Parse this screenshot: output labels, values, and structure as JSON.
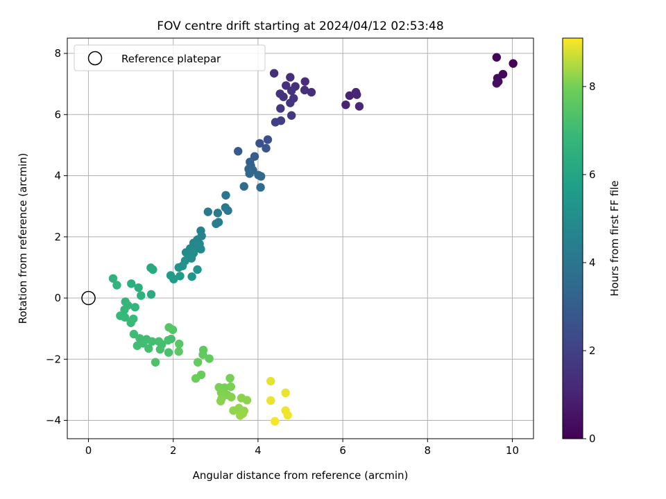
{
  "chart_data": {
    "type": "scatter",
    "title": "FOV centre drift starting at 2024/04/12 02:53:48",
    "xlabel": "Angular distance from reference (arcmin)",
    "ylabel": "Rotation from reference (arcmin)",
    "xlim": [
      -0.5,
      10.5
    ],
    "ylim": [
      -4.6,
      8.5
    ],
    "xticks": [
      0,
      2,
      4,
      6,
      8,
      10
    ],
    "yticks": [
      -4,
      -2,
      0,
      2,
      4,
      6,
      8
    ],
    "grid": true,
    "legend": {
      "placement": "top-left",
      "entries": [
        "Reference platepar"
      ]
    },
    "reference": {
      "label": "Reference platepar",
      "x": 0,
      "y": 0
    },
    "colorbar": {
      "label": "Hours from first FF file",
      "colormap": "viridis",
      "range": [
        0,
        9.1
      ],
      "ticks": [
        0,
        2,
        4,
        6,
        8
      ]
    },
    "points": [
      {
        "x": 9.63,
        "y": 7.87,
        "t": 0.1
      },
      {
        "x": 10.02,
        "y": 7.67,
        "t": 0.05
      },
      {
        "x": 9.78,
        "y": 7.32,
        "t": 0.2
      },
      {
        "x": 9.65,
        "y": 7.19,
        "t": 0.3
      },
      {
        "x": 9.67,
        "y": 7.08,
        "t": 0.35
      },
      {
        "x": 9.63,
        "y": 7.02,
        "t": 0.4
      },
      {
        "x": 6.07,
        "y": 6.32,
        "t": 1.0
      },
      {
        "x": 6.16,
        "y": 6.62,
        "t": 1.0
      },
      {
        "x": 6.31,
        "y": 6.73,
        "t": 1.05
      },
      {
        "x": 6.33,
        "y": 6.65,
        "t": 1.05
      },
      {
        "x": 6.39,
        "y": 6.27,
        "t": 1.1
      },
      {
        "x": 4.38,
        "y": 7.35,
        "t": 1.4
      },
      {
        "x": 4.76,
        "y": 7.22,
        "t": 1.35
      },
      {
        "x": 5.11,
        "y": 7.08,
        "t": 1.3
      },
      {
        "x": 4.66,
        "y": 6.95,
        "t": 1.45
      },
      {
        "x": 4.88,
        "y": 6.92,
        "t": 1.4
      },
      {
        "x": 4.79,
        "y": 6.78,
        "t": 1.5
      },
      {
        "x": 5.1,
        "y": 6.8,
        "t": 1.4
      },
      {
        "x": 5.26,
        "y": 6.73,
        "t": 1.35
      },
      {
        "x": 4.52,
        "y": 6.68,
        "t": 1.55
      },
      {
        "x": 4.6,
        "y": 6.58,
        "t": 1.55
      },
      {
        "x": 4.84,
        "y": 6.53,
        "t": 1.5
      },
      {
        "x": 4.76,
        "y": 6.38,
        "t": 1.55
      },
      {
        "x": 4.53,
        "y": 6.2,
        "t": 1.65
      },
      {
        "x": 4.79,
        "y": 5.97,
        "t": 1.65
      },
      {
        "x": 4.54,
        "y": 5.8,
        "t": 1.85
      },
      {
        "x": 4.41,
        "y": 5.75,
        "t": 1.95
      },
      {
        "x": 4.23,
        "y": 5.18,
        "t": 2.5
      },
      {
        "x": 4.04,
        "y": 5.06,
        "t": 2.6
      },
      {
        "x": 4.19,
        "y": 4.9,
        "t": 2.7
      },
      {
        "x": 3.53,
        "y": 4.8,
        "t": 2.9
      },
      {
        "x": 3.92,
        "y": 4.63,
        "t": 3.0
      },
      {
        "x": 3.81,
        "y": 4.45,
        "t": 3.1
      },
      {
        "x": 3.83,
        "y": 4.33,
        "t": 3.2
      },
      {
        "x": 3.78,
        "y": 4.22,
        "t": 3.3
      },
      {
        "x": 3.88,
        "y": 4.18,
        "t": 3.3
      },
      {
        "x": 3.8,
        "y": 4.07,
        "t": 3.4
      },
      {
        "x": 4.01,
        "y": 4.02,
        "t": 3.4
      },
      {
        "x": 4.07,
        "y": 3.98,
        "t": 3.45
      },
      {
        "x": 3.67,
        "y": 3.65,
        "t": 3.6
      },
      {
        "x": 4.06,
        "y": 3.62,
        "t": 3.6
      },
      {
        "x": 3.24,
        "y": 3.36,
        "t": 4.0
      },
      {
        "x": 3.23,
        "y": 2.96,
        "t": 4.1
      },
      {
        "x": 2.82,
        "y": 2.82,
        "t": 4.2
      },
      {
        "x": 3.05,
        "y": 2.78,
        "t": 4.2
      },
      {
        "x": 3.29,
        "y": 2.86,
        "t": 4.15
      },
      {
        "x": 3.07,
        "y": 2.48,
        "t": 4.3
      },
      {
        "x": 3.01,
        "y": 2.43,
        "t": 4.35
      },
      {
        "x": 2.65,
        "y": 2.2,
        "t": 4.5
      },
      {
        "x": 2.67,
        "y": 2.03,
        "t": 4.6
      },
      {
        "x": 2.57,
        "y": 1.91,
        "t": 4.65
      },
      {
        "x": 2.48,
        "y": 1.8,
        "t": 4.7
      },
      {
        "x": 2.62,
        "y": 1.77,
        "t": 4.75
      },
      {
        "x": 2.54,
        "y": 1.68,
        "t": 4.8
      },
      {
        "x": 2.4,
        "y": 1.62,
        "t": 4.85
      },
      {
        "x": 2.65,
        "y": 1.6,
        "t": 4.85
      },
      {
        "x": 2.3,
        "y": 1.49,
        "t": 4.9
      },
      {
        "x": 2.48,
        "y": 1.47,
        "t": 4.95
      },
      {
        "x": 2.37,
        "y": 1.38,
        "t": 5.0
      },
      {
        "x": 2.43,
        "y": 1.3,
        "t": 5.05
      },
      {
        "x": 2.28,
        "y": 1.22,
        "t": 5.1
      },
      {
        "x": 2.22,
        "y": 1.05,
        "t": 5.2
      },
      {
        "x": 2.13,
        "y": 1.0,
        "t": 5.25
      },
      {
        "x": 2.57,
        "y": 0.93,
        "t": 5.3
      },
      {
        "x": 2.44,
        "y": 0.7,
        "t": 5.4
      },
      {
        "x": 1.94,
        "y": 0.74,
        "t": 5.6
      },
      {
        "x": 2.01,
        "y": 0.62,
        "t": 5.65
      },
      {
        "x": 2.16,
        "y": 0.72,
        "t": 5.55
      },
      {
        "x": 1.47,
        "y": 0.99,
        "t": 6.2
      },
      {
        "x": 1.52,
        "y": 0.93,
        "t": 6.25
      },
      {
        "x": 1.48,
        "y": 0.12,
        "t": 6.3
      },
      {
        "x": 1.01,
        "y": 0.47,
        "t": 6.4
      },
      {
        "x": 1.18,
        "y": 0.34,
        "t": 6.45
      },
      {
        "x": 1.24,
        "y": 0.08,
        "t": 6.5
      },
      {
        "x": 0.58,
        "y": 0.64,
        "t": 6.6
      },
      {
        "x": 0.67,
        "y": 0.42,
        "t": 6.65
      },
      {
        "x": 0.87,
        "y": -0.12,
        "t": 6.7
      },
      {
        "x": 0.93,
        "y": -0.24,
        "t": 6.75
      },
      {
        "x": 1.1,
        "y": -0.3,
        "t": 6.75
      },
      {
        "x": 0.85,
        "y": -0.38,
        "t": 6.8
      },
      {
        "x": 0.75,
        "y": -0.58,
        "t": 6.85
      },
      {
        "x": 0.86,
        "y": -0.63,
        "t": 6.85
      },
      {
        "x": 1.06,
        "y": -0.68,
        "t": 6.9
      },
      {
        "x": 1.0,
        "y": -0.81,
        "t": 6.9
      },
      {
        "x": 1.07,
        "y": -1.18,
        "t": 7.0
      },
      {
        "x": 1.21,
        "y": -1.32,
        "t": 7.05
      },
      {
        "x": 1.37,
        "y": -1.35,
        "t": 7.05
      },
      {
        "x": 1.5,
        "y": -1.42,
        "t": 7.1
      },
      {
        "x": 1.29,
        "y": -1.48,
        "t": 7.1
      },
      {
        "x": 1.15,
        "y": -1.56,
        "t": 7.1
      },
      {
        "x": 1.42,
        "y": -1.65,
        "t": 7.15
      },
      {
        "x": 1.66,
        "y": -1.42,
        "t": 7.15
      },
      {
        "x": 1.73,
        "y": -1.52,
        "t": 7.15
      },
      {
        "x": 1.88,
        "y": -1.38,
        "t": 7.2
      },
      {
        "x": 1.95,
        "y": -1.34,
        "t": 7.2
      },
      {
        "x": 1.69,
        "y": -1.68,
        "t": 7.2
      },
      {
        "x": 1.89,
        "y": -1.78,
        "t": 7.25
      },
      {
        "x": 1.58,
        "y": -2.1,
        "t": 7.3
      },
      {
        "x": 1.9,
        "y": -0.96,
        "t": 7.5
      },
      {
        "x": 1.99,
        "y": -1.04,
        "t": 7.5
      },
      {
        "x": 2.14,
        "y": -1.5,
        "t": 7.55
      },
      {
        "x": 2.13,
        "y": -1.75,
        "t": 7.6
      },
      {
        "x": 2.71,
        "y": -1.7,
        "t": 7.65
      },
      {
        "x": 2.7,
        "y": -1.85,
        "t": 7.7
      },
      {
        "x": 2.85,
        "y": -1.98,
        "t": 7.75
      },
      {
        "x": 2.58,
        "y": -2.1,
        "t": 7.8
      },
      {
        "x": 2.66,
        "y": -2.51,
        "t": 7.85
      },
      {
        "x": 2.53,
        "y": -2.63,
        "t": 7.9
      },
      {
        "x": 3.34,
        "y": -2.62,
        "t": 8.0
      },
      {
        "x": 3.08,
        "y": -2.92,
        "t": 8.05
      },
      {
        "x": 3.21,
        "y": -2.93,
        "t": 8.05
      },
      {
        "x": 3.36,
        "y": -2.9,
        "t": 8.05
      },
      {
        "x": 3.13,
        "y": -3.09,
        "t": 8.1
      },
      {
        "x": 3.28,
        "y": -3.17,
        "t": 8.1
      },
      {
        "x": 3.14,
        "y": -3.29,
        "t": 8.15
      },
      {
        "x": 3.37,
        "y": -3.24,
        "t": 8.15
      },
      {
        "x": 3.61,
        "y": -3.27,
        "t": 8.2
      },
      {
        "x": 3.74,
        "y": -3.34,
        "t": 8.2
      },
      {
        "x": 3.12,
        "y": -3.37,
        "t": 8.2
      },
      {
        "x": 3.55,
        "y": -3.6,
        "t": 8.25
      },
      {
        "x": 3.42,
        "y": -3.68,
        "t": 8.25
      },
      {
        "x": 3.67,
        "y": -3.69,
        "t": 8.25
      },
      {
        "x": 3.58,
        "y": -3.84,
        "t": 8.3
      },
      {
        "x": 3.64,
        "y": -3.78,
        "t": 8.3
      },
      {
        "x": 4.3,
        "y": -2.72,
        "t": 8.9
      },
      {
        "x": 4.65,
        "y": -3.1,
        "t": 8.95
      },
      {
        "x": 4.3,
        "y": -3.35,
        "t": 8.95
      },
      {
        "x": 4.65,
        "y": -3.68,
        "t": 9.0
      },
      {
        "x": 4.7,
        "y": -3.83,
        "t": 9.0
      },
      {
        "x": 4.4,
        "y": -4.03,
        "t": 9.05
      }
    ]
  }
}
